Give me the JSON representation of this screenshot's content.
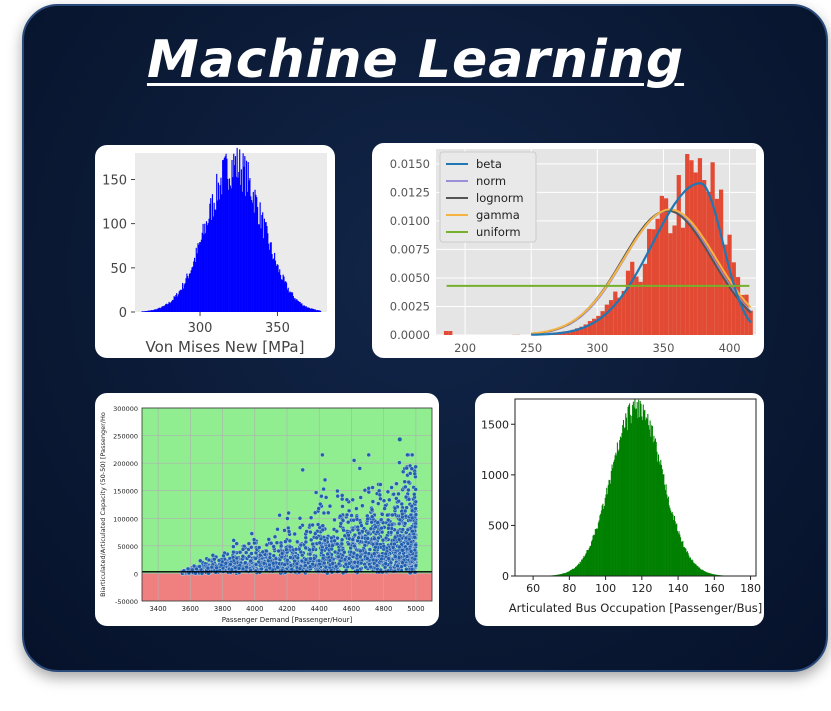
{
  "title": "Machine Learning",
  "chart_data": [
    {
      "type": "bar",
      "id": "von-mises",
      "xlabel": "Von Mises New [MPa]",
      "ylabel": "",
      "xlim": [
        258,
        382
      ],
      "ylim": [
        0,
        180
      ],
      "xticks": [
        300,
        350
      ],
      "yticks": [
        0,
        50,
        100,
        150
      ],
      "color": "#0000ff",
      "background": "#ebebeb",
      "distribution": {
        "mean": 322,
        "std": 18,
        "peak": 172,
        "min": 262,
        "max": 378
      }
    },
    {
      "type": "bar",
      "id": "distribution-fit",
      "xlabel": "",
      "ylabel": "",
      "xlim": [
        178,
        420
      ],
      "ylim": [
        0,
        0.0163
      ],
      "xticks": [
        200,
        250,
        300,
        350,
        400
      ],
      "yticks": [
        "0.0000",
        "0.0025",
        "0.0050",
        "0.0075",
        "0.0100",
        "0.0125",
        "0.0150"
      ],
      "color": "#e24a33",
      "background": "#e5e5e5",
      "legend_position": "top-left",
      "series": [
        {
          "name": "beta",
          "color": "#1f77b4"
        },
        {
          "name": "norm",
          "color": "#9a8fd8"
        },
        {
          "name": "lognorm",
          "color": "#555555"
        },
        {
          "name": "gamma",
          "color": "#f5b342"
        },
        {
          "name": "uniform",
          "color": "#77b02d"
        }
      ],
      "uniform_level": 0.0043
    },
    {
      "type": "scatter",
      "id": "capacity",
      "xlabel": "Passenger Demand [Passenger/Hour]",
      "ylabel": "Biarticulated/Articulated Capacity (50-50) [Passenger/Ho",
      "xlim": [
        3300,
        5100
      ],
      "ylim": [
        -50000,
        300000
      ],
      "xticks": [
        3400,
        3600,
        3800,
        4000,
        4200,
        4400,
        4600,
        4800,
        5000
      ],
      "yticks": [
        -50000,
        0,
        50000,
        100000,
        150000,
        200000,
        250000,
        300000
      ],
      "point_color": "#1f5fae",
      "positive_region_color": "#90ee90",
      "negative_region_color": "#f08080",
      "grid": true
    },
    {
      "type": "bar",
      "id": "bus-occupation",
      "xlabel": "Articulated Bus Occupation [Passenger/Bus]",
      "ylabel": "",
      "xlim": [
        50,
        183
      ],
      "ylim": [
        0,
        1750
      ],
      "xticks": [
        60,
        80,
        100,
        120,
        140,
        160,
        180
      ],
      "yticks": [
        0,
        500,
        1000,
        1500
      ],
      "color": "#008000",
      "background": "#ffffff",
      "distribution": {
        "mean": 117,
        "std": 14,
        "peak": 1720,
        "min": 68,
        "max": 168
      }
    }
  ]
}
